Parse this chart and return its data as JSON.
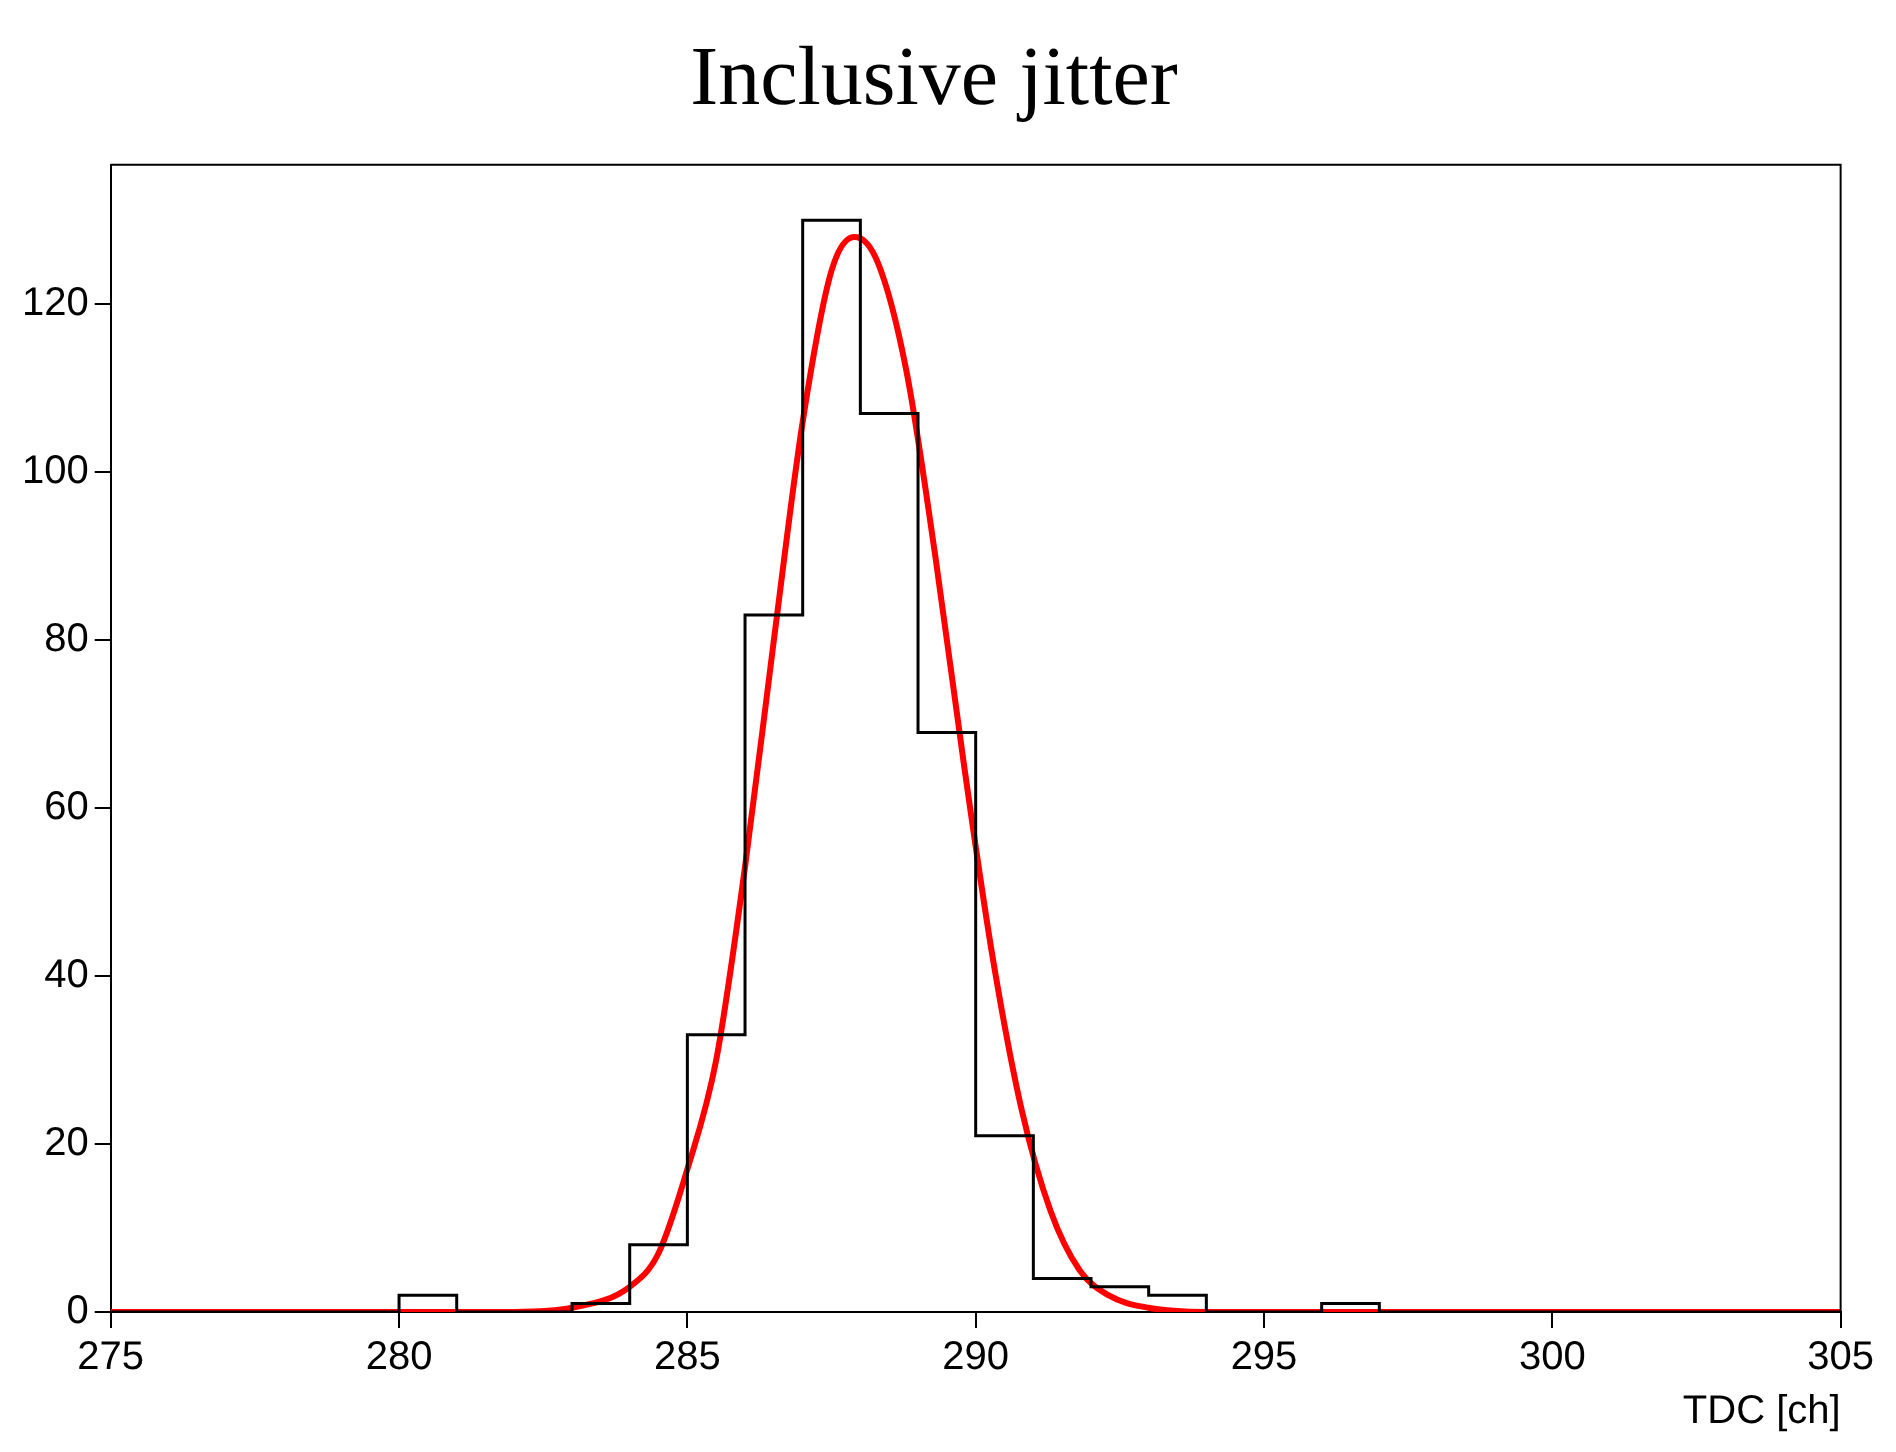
{
  "chart_data": {
    "type": "histogram",
    "title": "Inclusive jitter",
    "xlabel": "TDC [ch]",
    "bins": [
      275,
      276,
      277,
      278,
      279,
      280,
      281,
      282,
      283,
      284,
      285,
      286,
      287,
      288,
      289,
      290,
      291,
      292,
      293,
      294,
      295,
      296,
      297,
      298,
      299,
      300,
      301,
      302,
      303,
      304,
      305
    ],
    "values": [
      0,
      0,
      0,
      0,
      0,
      2,
      0,
      0,
      1,
      8,
      33,
      83,
      130,
      107,
      69,
      21,
      4,
      3,
      2,
      0,
      0,
      1,
      0,
      0,
      0,
      0,
      0,
      0,
      0,
      0
    ],
    "color": "#000000",
    "series": [
      {
        "type": "line",
        "color": "#ff0000",
        "x": [
          275,
          282,
          283,
          284,
          284.5,
          285,
          285.5,
          286,
          286.5,
          287,
          287.5,
          287.9,
          288.3,
          288.8,
          289.3,
          289.8,
          290.3,
          290.8,
          291.3,
          291.8,
          292.3,
          293,
          294,
          305
        ],
        "values": [
          0,
          0,
          0.5,
          3,
          7,
          17,
          30,
          53,
          80,
          106,
          124,
          128,
          125,
          112,
          90,
          65,
          42,
          24,
          12,
          5,
          2,
          0.5,
          0,
          0
        ]
      }
    ],
    "xlim": [
      275,
      305
    ],
    "xticks": [
      275,
      280,
      285,
      290,
      295,
      300,
      305
    ],
    "ylim": [
      0,
      136.6
    ],
    "yticks": [
      0,
      20,
      40,
      60,
      80,
      100,
      120
    ],
    "grid": false,
    "legend": false,
    "marker": "none"
  }
}
